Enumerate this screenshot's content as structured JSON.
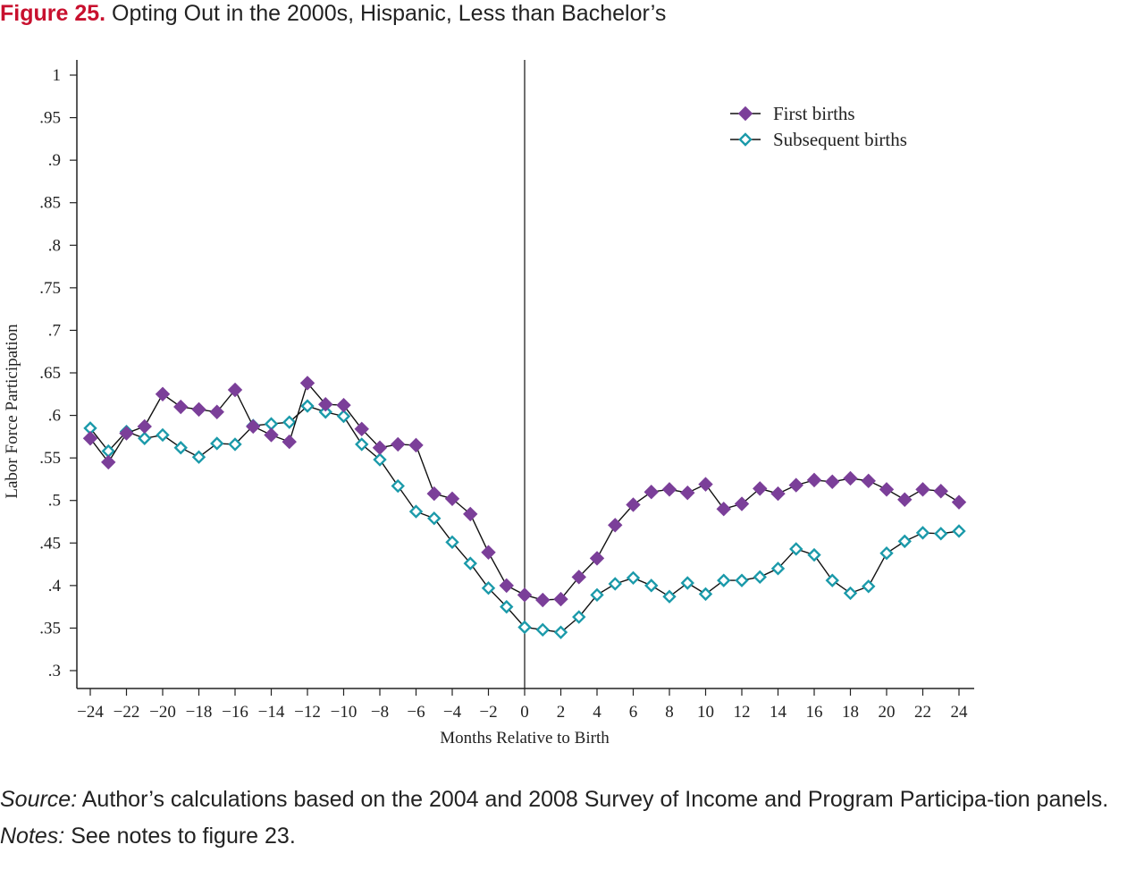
{
  "figure": {
    "number": "Figure 25.",
    "title": "Opting Out in the 2000s, Hispanic, Less than Bachelor’s"
  },
  "footer": {
    "source_label": "Source:",
    "source_text": "Author’s calculations based on the 2004 and 2008 Survey of Income and Program Participa-tion panels.",
    "notes_label": "Notes:",
    "notes_text": "See notes to figure 23."
  },
  "colors": {
    "first_births": "#7b3f99",
    "subsequent_births": "#1b9aaa",
    "axis": "#222222",
    "title_accent": "#c8102e"
  },
  "chart_data": {
    "type": "line",
    "xlabel": "Months Relative to Birth",
    "ylabel": "Labor Force Participation",
    "xlim": [
      -24,
      24
    ],
    "ylim": [
      0.3,
      1
    ],
    "x_ticks": [
      -24,
      -22,
      -20,
      -18,
      -16,
      -14,
      -12,
      -10,
      -8,
      -6,
      -4,
      -2,
      0,
      2,
      4,
      6,
      8,
      10,
      12,
      14,
      16,
      18,
      20,
      22,
      24
    ],
    "x_tick_labels": [
      "−24",
      "−22",
      "−20",
      "−18",
      "−16",
      "−14",
      "−12",
      "−10",
      "−8",
      "−6",
      "−4",
      "−2",
      "0",
      "2",
      "4",
      "6",
      "8",
      "10",
      "12",
      "14",
      "16",
      "18",
      "20",
      "22",
      "24"
    ],
    "y_ticks": [
      0.3,
      0.35,
      0.4,
      0.45,
      0.5,
      0.55,
      0.6,
      0.65,
      0.7,
      0.75,
      0.8,
      0.85,
      0.9,
      0.95,
      1
    ],
    "y_tick_labels": [
      ".3",
      ".35",
      ".4",
      ".45",
      ".5",
      ".55",
      ".6",
      ".65",
      ".7",
      ".75",
      ".8",
      ".85",
      ".9",
      ".95",
      "1"
    ],
    "reference_line_x": 0,
    "grid": false,
    "legend_position": "top-right",
    "x": [
      -24,
      -23,
      -22,
      -21,
      -20,
      -19,
      -18,
      -17,
      -16,
      -15,
      -14,
      -13,
      -12,
      -11,
      -10,
      -9,
      -8,
      -7,
      -6,
      -5,
      -4,
      -3,
      -2,
      -1,
      0,
      1,
      2,
      3,
      4,
      5,
      6,
      7,
      8,
      9,
      10,
      11,
      12,
      13,
      14,
      15,
      16,
      17,
      18,
      19,
      20,
      21,
      22,
      23,
      24
    ],
    "series": [
      {
        "name": "First births",
        "marker": "filled-diamond",
        "values": [
          0.573,
          0.545,
          0.579,
          0.587,
          0.625,
          0.61,
          0.607,
          0.604,
          0.63,
          0.587,
          0.577,
          0.569,
          0.638,
          0.613,
          0.612,
          0.584,
          0.562,
          0.566,
          0.565,
          0.508,
          0.502,
          0.484,
          0.439,
          0.4,
          0.389,
          0.383,
          0.384,
          0.41,
          0.432,
          0.471,
          0.495,
          0.51,
          0.513,
          0.509,
          0.519,
          0.49,
          0.496,
          0.514,
          0.508,
          0.518,
          0.524,
          0.522,
          0.526,
          0.523,
          0.513,
          0.501,
          0.513,
          0.511,
          0.498
        ]
      },
      {
        "name": "Subsequent births",
        "marker": "hollow-diamond",
        "values": [
          0.585,
          0.558,
          0.581,
          0.573,
          0.577,
          0.562,
          0.551,
          0.567,
          0.566,
          0.588,
          0.59,
          0.592,
          0.611,
          0.604,
          0.599,
          0.566,
          0.548,
          0.517,
          0.487,
          0.479,
          0.451,
          0.426,
          0.397,
          0.375,
          0.351,
          0.348,
          0.345,
          0.363,
          0.389,
          0.402,
          0.409,
          0.4,
          0.387,
          0.403,
          0.39,
          0.406,
          0.406,
          0.41,
          0.42,
          0.443,
          0.436,
          0.406,
          0.391,
          0.399,
          0.438,
          0.452,
          0.462,
          0.461,
          0.464
        ]
      }
    ]
  }
}
